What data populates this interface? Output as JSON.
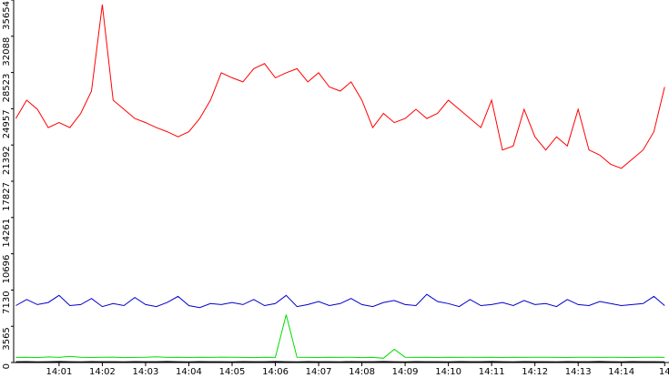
{
  "chart_data": {
    "type": "line",
    "x": [
      0,
      0.25,
      0.5,
      0.75,
      1,
      1.25,
      1.5,
      1.75,
      2,
      2.25,
      2.5,
      2.75,
      3,
      3.25,
      3.5,
      3.75,
      4,
      4.25,
      4.5,
      4.75,
      5,
      5.25,
      5.5,
      5.75,
      6,
      6.25,
      6.5,
      6.75,
      7,
      7.25,
      7.5,
      7.75,
      8,
      8.25,
      8.5,
      8.75,
      9,
      9.25,
      9.5,
      9.75,
      10,
      10.25,
      10.5,
      10.75,
      11,
      11.25,
      11.5,
      11.75,
      12,
      12.25,
      12.5,
      12.75,
      13,
      13.25,
      13.5,
      13.75,
      14,
      14.25,
      14.5,
      14.75,
      15
    ],
    "series": [
      {
        "color": "#ff0000",
        "values": [
          24000,
          25800,
          24900,
          23100,
          23600,
          23100,
          24500,
          26700,
          35200,
          25800,
          24900,
          24000,
          23600,
          23100,
          22700,
          22200,
          22700,
          24000,
          25800,
          28500,
          28000,
          27600,
          28900,
          29400,
          28000,
          28500,
          28900,
          27600,
          28500,
          27100,
          26700,
          27600,
          25800,
          23100,
          24500,
          23600,
          24000,
          24900,
          24000,
          24500,
          25800,
          24900,
          24000,
          23100,
          25800,
          20900,
          21300,
          24900,
          22200,
          20900,
          22200,
          21300,
          24900,
          20900,
          20400,
          19500,
          19100,
          20000,
          20900,
          22700,
          27100
        ]
      },
      {
        "color": "#0000cc",
        "values": [
          5600,
          6200,
          5700,
          5900,
          6600,
          5600,
          5700,
          6300,
          5500,
          5800,
          5600,
          6400,
          5700,
          5500,
          5900,
          6500,
          5600,
          5400,
          5800,
          5700,
          5900,
          5700,
          6200,
          5600,
          5800,
          6600,
          5500,
          5700,
          6000,
          5600,
          5800,
          6300,
          5700,
          5500,
          5900,
          6100,
          5700,
          5600,
          6700,
          6000,
          5800,
          5500,
          6200,
          5600,
          5700,
          5900,
          5600,
          6100,
          5700,
          5800,
          5500,
          6200,
          5700,
          5600,
          6000,
          5800,
          5600,
          5700,
          5800,
          6500,
          5600
        ]
      },
      {
        "color": "#00dd00",
        "values": [
          500,
          520,
          480,
          550,
          500,
          600,
          520,
          490,
          510,
          530,
          480,
          500,
          520,
          560,
          500,
          510,
          490,
          520,
          500,
          530,
          510,
          500,
          480,
          510,
          500,
          4700,
          520,
          500,
          490,
          510,
          500,
          520,
          480,
          500,
          420,
          1300,
          520,
          500,
          510,
          490,
          520,
          500,
          510,
          500,
          520,
          490,
          510,
          500,
          520,
          510,
          500,
          490,
          510,
          520,
          500,
          510,
          500,
          490,
          520,
          510,
          500
        ]
      },
      {
        "color": "#000000",
        "values": [
          80,
          90,
          70,
          80,
          100,
          80,
          70,
          90,
          80,
          80,
          70,
          90,
          80,
          80,
          100,
          80,
          70,
          90,
          80,
          80,
          70,
          90,
          80,
          80,
          100,
          80,
          70,
          90,
          80,
          80,
          70,
          90,
          80,
          80,
          100,
          80,
          70,
          90,
          80,
          80,
          70,
          90,
          80,
          80,
          100,
          80,
          70,
          90,
          80,
          80,
          70,
          90,
          80,
          80,
          100,
          80,
          70,
          90,
          80,
          80,
          70
        ]
      }
    ],
    "xlim": [
      -0.05,
      15.1
    ],
    "ylim": [
      0,
      35654
    ],
    "yticks": [
      0,
      3565,
      7130,
      10696,
      14261,
      17827,
      21392,
      24957,
      28523,
      32088,
      35654
    ],
    "xticks": [
      {
        "value": 1,
        "label": "14:01"
      },
      {
        "value": 2,
        "label": "14:02"
      },
      {
        "value": 3,
        "label": "14:03"
      },
      {
        "value": 4,
        "label": "14:04"
      },
      {
        "value": 5,
        "label": "14:05"
      },
      {
        "value": 6,
        "label": "14:06"
      },
      {
        "value": 7,
        "label": "14:07"
      },
      {
        "value": 8,
        "label": "14:08"
      },
      {
        "value": 9,
        "label": "14:09"
      },
      {
        "value": 10,
        "label": "14:10"
      },
      {
        "value": 11,
        "label": "14:11"
      },
      {
        "value": 12,
        "label": "14:12"
      },
      {
        "value": 13,
        "label": "14:13"
      },
      {
        "value": 14,
        "label": "14:14"
      },
      {
        "value": 15,
        "label": "14"
      }
    ]
  }
}
